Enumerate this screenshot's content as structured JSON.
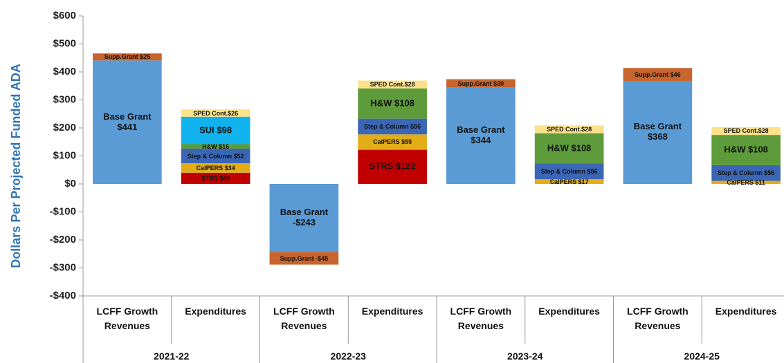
{
  "chart_data": {
    "type": "stacked_bar",
    "y_label": "Dollars Per Projected Funded ADA",
    "categories": [
      "LCFF Growth Revenues",
      "Expenditures",
      "LCFF Growth Revenues",
      "Expenditures",
      "LCFF Growth Revenues",
      "Expenditures",
      "LCFF Growth Revenues",
      "Expenditures"
    ],
    "groups": [
      "2021-22",
      "2022-23",
      "2023-24",
      "2024-25"
    ],
    "ylim": [
      -400,
      600
    ],
    "yticks": [
      {
        "value": -400,
        "label": "-$400"
      },
      {
        "value": -300,
        "label": "-$300"
      },
      {
        "value": -200,
        "label": "-$200"
      },
      {
        "value": -100,
        "label": "-$100"
      },
      {
        "value": 0,
        "label": "$0"
      },
      {
        "value": 100,
        "label": "$100"
      },
      {
        "value": 200,
        "label": "$200"
      },
      {
        "value": 300,
        "label": "$300"
      },
      {
        "value": 400,
        "label": "$400"
      },
      {
        "value": 500,
        "label": "$500"
      },
      {
        "value": 600,
        "label": "$600"
      }
    ],
    "series": [
      {
        "color": "#5b9bd5",
        "values": [
          441,
          null,
          -243,
          null,
          344,
          null,
          368,
          null
        ],
        "value_labels": [
          "Base Grant $441",
          null,
          "Base Grant -$243",
          null,
          "Base Grant $344",
          null,
          "Base Grant $368",
          null
        ]
      },
      {
        "color": "#c8642d",
        "values": [
          25,
          null,
          -45,
          null,
          30,
          null,
          46,
          null
        ],
        "value_labels": [
          "Supp.Grant $25",
          null,
          "Supp.Grant -$45",
          null,
          "Supp.Grant $30",
          null,
          "Supp.Grant $46",
          null
        ]
      },
      {
        "color": "#c00000",
        "values": [
          null,
          40,
          null,
          122,
          null,
          null,
          null,
          null
        ],
        "value_labels": [
          null,
          "STRS $40",
          null,
          "STRS $122",
          null,
          null,
          null,
          null
        ]
      },
      {
        "color": "#e3ad17",
        "values": [
          null,
          34,
          null,
          55,
          null,
          17,
          null,
          11
        ],
        "value_labels": [
          null,
          "CalPERS $34",
          null,
          "CalPERS $55",
          null,
          "CalPERS $17",
          null,
          "CalPERS $11"
        ]
      },
      {
        "color": "#3b66b5",
        "values": [
          null,
          52,
          null,
          56,
          null,
          56,
          null,
          56
        ],
        "value_labels": [
          null,
          "Step & Column $52",
          null,
          "Step & Column $56",
          null,
          "Step & Column $56",
          null,
          "Step & Column $56"
        ]
      },
      {
        "color": "#5e9b3b",
        "values": [
          null,
          16,
          null,
          108,
          null,
          108,
          null,
          108
        ],
        "value_labels": [
          null,
          "H&W $16",
          null,
          "H&W $108",
          null,
          "H&W $108",
          null,
          "H&W $108"
        ]
      },
      {
        "color": "#10b3ee",
        "values": [
          null,
          98,
          null,
          null,
          null,
          null,
          null,
          null
        ],
        "value_labels": [
          null,
          "SUI $98",
          null,
          null,
          null,
          null,
          null,
          null
        ]
      },
      {
        "color": "#fbe28a",
        "values": [
          null,
          26,
          null,
          28,
          null,
          28,
          null,
          28
        ],
        "value_labels": [
          null,
          "SPED Cont.$26",
          null,
          "SPED Cont.$28",
          null,
          "SPED Cont.$28",
          null,
          "SPED Cont.$28"
        ]
      }
    ]
  }
}
